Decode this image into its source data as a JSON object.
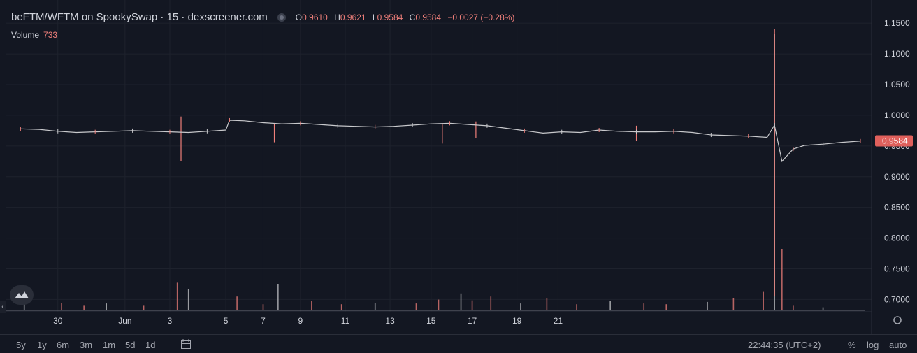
{
  "header": {
    "title": "beFTM/WFTM on SpookySwap · 15 · dexscreener.com",
    "ohlc": {
      "o_label": "O",
      "o_value": "0.9610",
      "h_label": "H",
      "h_value": "0.9621",
      "l_label": "L",
      "l_value": "0.9584",
      "c_label": "C",
      "c_value": "0.9584",
      "change": "−0.0027 (−0.28%)"
    },
    "volume_label": "Volume",
    "volume_value": "733"
  },
  "colors": {
    "background": "#131722",
    "grid": "#1e222d",
    "up": "#c8c9cc",
    "down": "#ef7f7a",
    "text": "#d1d4dc",
    "price_tag": "#e0605c"
  },
  "chart_data": {
    "type": "line",
    "y_axis": {
      "ticks": [
        "1.1500",
        "1.1000",
        "1.0500",
        "1.0000",
        "0.9500",
        "0.9000",
        "0.8500",
        "0.8000",
        "0.7500",
        "0.7000"
      ],
      "ylim": [
        0.68,
        1.165
      ],
      "position": "right"
    },
    "x_axis": {
      "tick_labels": [
        "30",
        "Jun",
        "3",
        "5",
        "7",
        "9",
        "11",
        "13",
        "15",
        "17",
        "19",
        "21"
      ]
    },
    "last_price": "0.9584",
    "series": [
      {
        "values_x": [
          29.0,
          29.5,
          30.0,
          30.5,
          31.0,
          31.5,
          32.0,
          32.5,
          33.0,
          33.5,
          34.0,
          34.5,
          34.6,
          35.0,
          35.5,
          36.0,
          36.5,
          37.0,
          37.5,
          38.0,
          38.5,
          39.0,
          39.5,
          40.0,
          40.5,
          41.0,
          41.5,
          42.0,
          42.5,
          43.0,
          43.5,
          44.0,
          44.5,
          45.0,
          45.5,
          46.0,
          46.5,
          47.0,
          47.5,
          48.0,
          48.5,
          49.0,
          49.2,
          49.4,
          49.7,
          50.0,
          50.5,
          51.0,
          51.5
        ],
        "values_y": [
          0.978,
          0.977,
          0.974,
          0.972,
          0.973,
          0.974,
          0.975,
          0.974,
          0.973,
          0.972,
          0.974,
          0.976,
          0.992,
          0.991,
          0.988,
          0.986,
          0.987,
          0.985,
          0.983,
          0.982,
          0.981,
          0.982,
          0.984,
          0.986,
          0.987,
          0.985,
          0.983,
          0.979,
          0.975,
          0.971,
          0.973,
          0.972,
          0.976,
          0.974,
          0.973,
          0.973,
          0.974,
          0.972,
          0.968,
          0.967,
          0.966,
          0.964,
          0.984,
          0.925,
          0.945,
          0.951,
          0.953,
          0.956,
          0.958
        ]
      }
    ],
    "wicks": [
      {
        "x": 49.2,
        "high": 1.14,
        "low": 0.705
      },
      {
        "x": 33.3,
        "high": 0.998,
        "low": 0.925
      },
      {
        "x": 35.8,
        "high": 0.986,
        "low": 0.956
      },
      {
        "x": 40.3,
        "high": 0.985,
        "low": 0.954
      },
      {
        "x": 41.2,
        "high": 0.99,
        "low": 0.963
      },
      {
        "x": 45.5,
        "high": 0.983,
        "low": 0.958
      }
    ],
    "volume": {
      "x": [
        29.1,
        30.1,
        30.7,
        31.3,
        32.3,
        33.2,
        33.5,
        34.8,
        35.5,
        35.9,
        36.8,
        37.6,
        38.5,
        39.6,
        40.2,
        40.8,
        41.1,
        41.6,
        42.4,
        43.1,
        43.9,
        44.8,
        45.7,
        46.3,
        47.4,
        48.1,
        48.9,
        49.2,
        49.4,
        49.7,
        50.5
      ],
      "v": [
        12,
        10,
        6,
        9,
        6,
        36,
        28,
        18,
        8,
        34,
        12,
        8,
        10,
        9,
        14,
        22,
        13,
        18,
        9,
        16,
        8,
        12,
        9,
        8,
        11,
        16,
        24,
        440,
        80,
        6,
        4
      ]
    }
  },
  "toolbar": {
    "ranges": [
      "5y",
      "1y",
      "6m",
      "3m",
      "1m",
      "5d",
      "1d"
    ],
    "time": "22:44:35 (UTC+2)",
    "right": [
      "%",
      "log",
      "auto"
    ]
  }
}
